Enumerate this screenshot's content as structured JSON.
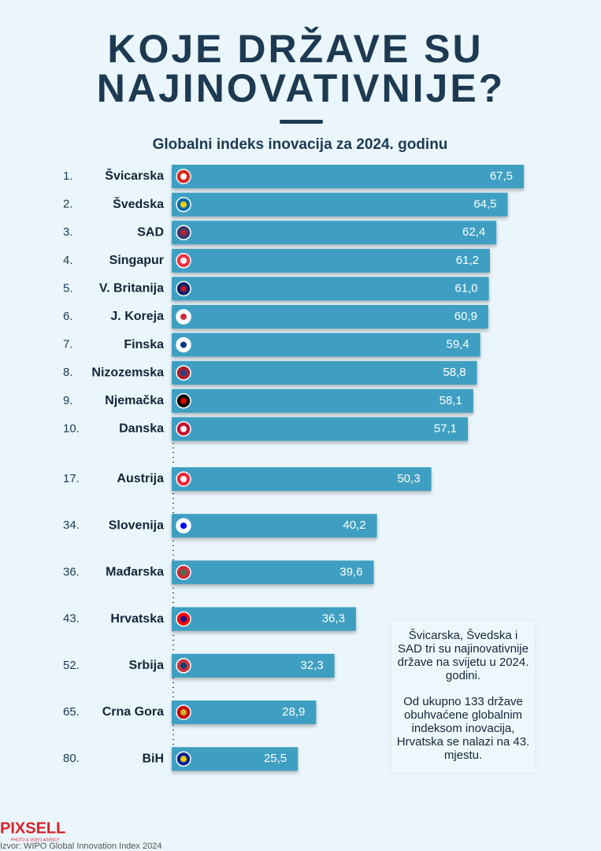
{
  "chart_data": {
    "type": "bar",
    "title": [
      "KOJE DRŽAVE SU",
      "NAJINOVATIVNIJE?"
    ],
    "subtitle": "Globalni indeks inovacija za 2024. godinu",
    "ranks": [
      "1.",
      "2.",
      "3.",
      "4.",
      "5.",
      "6.",
      "7.",
      "8.",
      "9.",
      "10.",
      "17.",
      "34.",
      "36.",
      "43.",
      "52.",
      "65.",
      "80."
    ],
    "categories": [
      "Švicarska",
      "Švedska",
      "SAD",
      "Singapur",
      "V. Britanija",
      "J. Koreja",
      "Finska",
      "Nizozemska",
      "Njemačka",
      "Danska",
      "Austrija",
      "Slovenija",
      "Mađarska",
      "Hrvatska",
      "Srbija",
      "Crna Gora",
      "BiH"
    ],
    "values": [
      67.5,
      64.5,
      62.4,
      61.2,
      61.0,
      60.9,
      59.4,
      58.8,
      58.1,
      57.1,
      50.3,
      40.2,
      39.6,
      36.3,
      32.3,
      28.9,
      25.5
    ],
    "value_labels": [
      "67,5",
      "64,5",
      "62,4",
      "61,2",
      "61,0",
      "60,9",
      "59,4",
      "58,8",
      "58,1",
      "57,1",
      "50,3",
      "40,2",
      "39,6",
      "36,3",
      "32,3",
      "28,9",
      "25,5"
    ],
    "color": "#3f9fc2",
    "note": [
      "Švicarska, Švedska i SAD tri su najinovativnije države na svijetu u 2024. godini.",
      "Od ukupno 133 državе obuhvaćene globalnim indeksom inovacija, Hrvatska se nalazi na 43. mjestu."
    ],
    "logo": "PIXSELL",
    "logo_sub": "PHOTO & VIDEO AGENCY",
    "source": "Izvor: WIPO Global Innovation Index 2024"
  }
}
